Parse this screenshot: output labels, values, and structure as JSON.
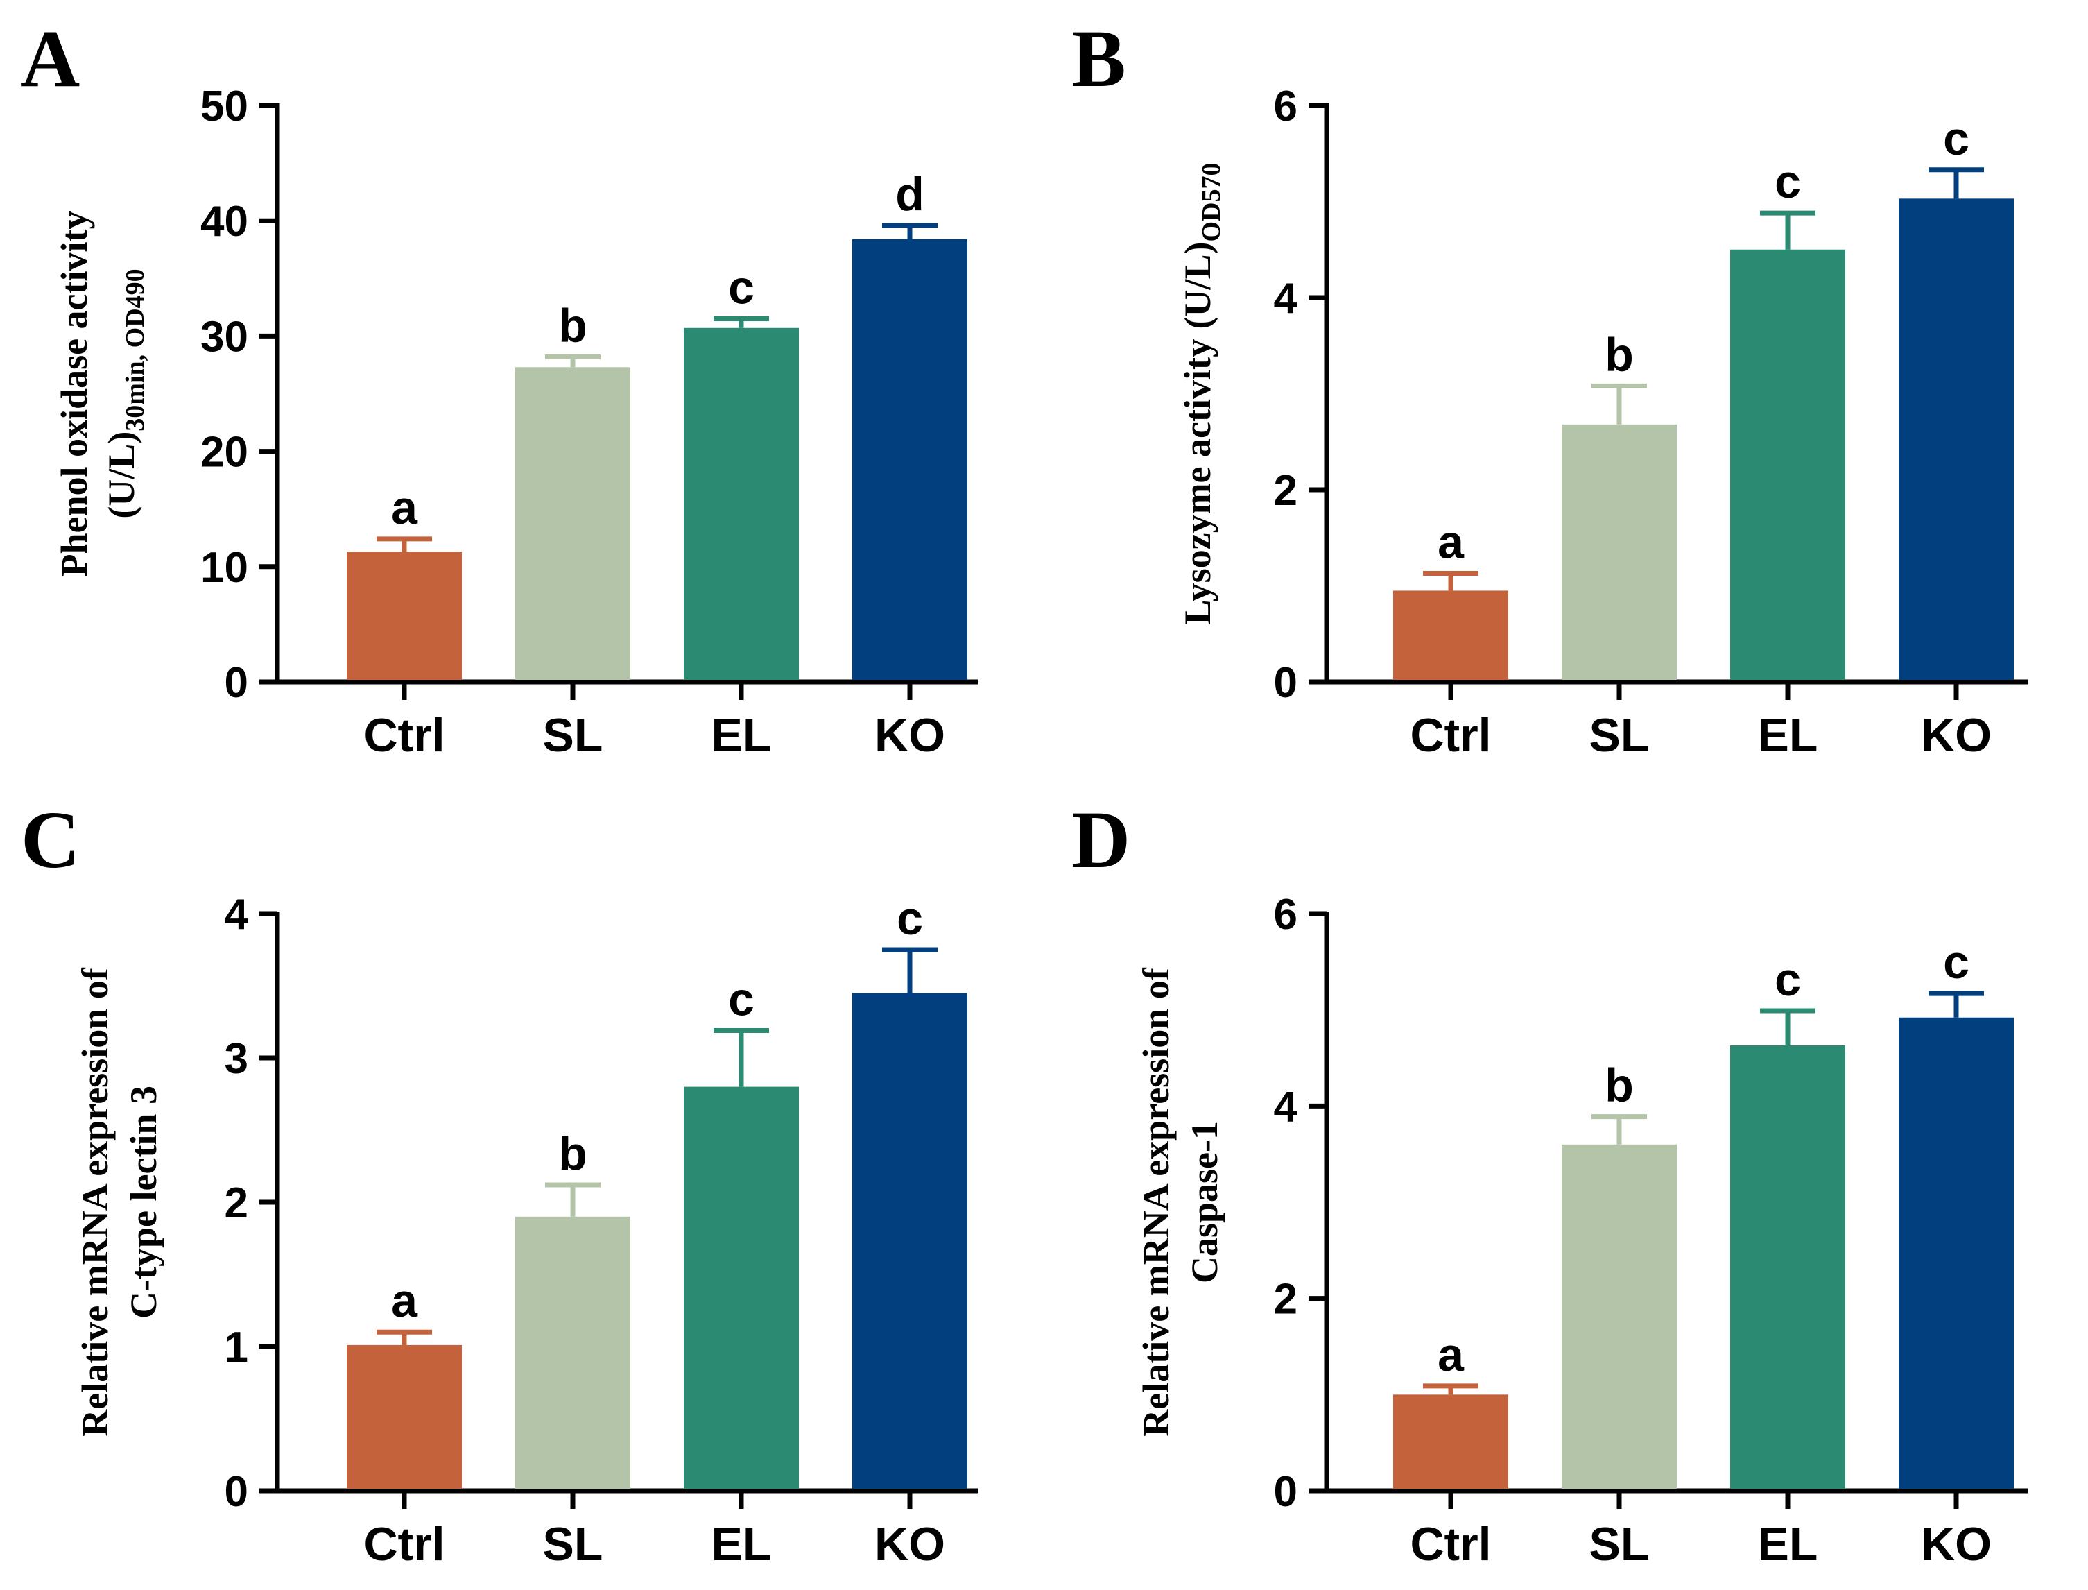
{
  "colors": {
    "Ctrl": "#c4623b",
    "SL": "#b4c4a8",
    "EL": "#2b8a72",
    "KO": "#023f7e"
  },
  "chart_data": [
    {
      "panel": "A",
      "type": "bar",
      "categories": [
        "Ctrl",
        "SL",
        "EL",
        "KO"
      ],
      "values": [
        11.3,
        27.3,
        30.7,
        38.4
      ],
      "errors": [
        1.1,
        0.9,
        0.8,
        1.2
      ],
      "significance": [
        "a",
        "b",
        "c",
        "d"
      ],
      "ylabel_main": "Phenol oxidase activity",
      "ylabel_line2": "(U/L)",
      "ylabel_sub": "30min, OD490",
      "ylim": [
        0,
        50
      ],
      "yticks": [
        0,
        10,
        20,
        30,
        40,
        50
      ]
    },
    {
      "panel": "B",
      "type": "bar",
      "categories": [
        "Ctrl",
        "SL",
        "EL",
        "KO"
      ],
      "values": [
        0.95,
        2.68,
        4.5,
        5.03
      ],
      "errors": [
        0.18,
        0.4,
        0.38,
        0.3
      ],
      "significance": [
        "a",
        "b",
        "c",
        "c"
      ],
      "ylabel_main": "Lysozyme activity (U/L)",
      "ylabel_sub": "OD570",
      "ylim": [
        0,
        6
      ],
      "yticks": [
        0,
        2,
        4,
        6
      ]
    },
    {
      "panel": "C",
      "type": "bar",
      "categories": [
        "Ctrl",
        "SL",
        "EL",
        "KO"
      ],
      "values": [
        1.01,
        1.9,
        2.8,
        3.45
      ],
      "errors": [
        0.09,
        0.22,
        0.39,
        0.3
      ],
      "significance": [
        "a",
        "b",
        "c",
        "c"
      ],
      "ylabel_line1": "Relative mRNA expression of",
      "ylabel_line2": "C-type lectin 3",
      "ylim": [
        0,
        4
      ],
      "yticks": [
        0,
        1,
        2,
        3,
        4
      ]
    },
    {
      "panel": "D",
      "type": "bar",
      "categories": [
        "Ctrl",
        "SL",
        "EL",
        "KO"
      ],
      "values": [
        1.0,
        3.6,
        4.63,
        4.92
      ],
      "errors": [
        0.09,
        0.29,
        0.36,
        0.25
      ],
      "significance": [
        "a",
        "b",
        "c",
        "c"
      ],
      "ylabel_line1": "Relative mRNA expression of",
      "ylabel_line2": "Caspase-1",
      "ylim": [
        0,
        6
      ],
      "yticks": [
        0,
        2,
        4,
        6
      ]
    }
  ]
}
